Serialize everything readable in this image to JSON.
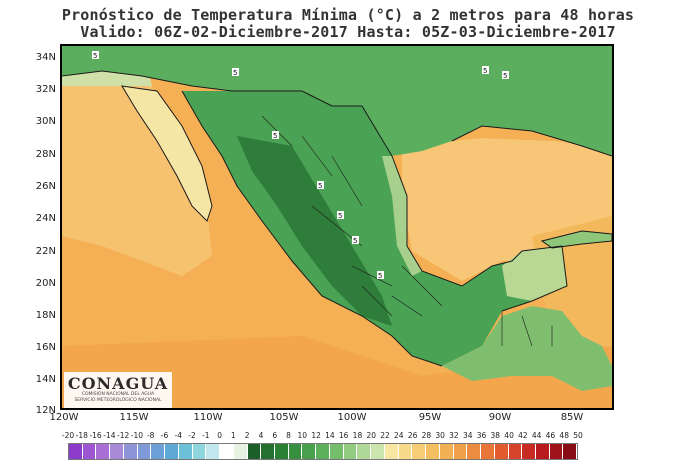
{
  "title": {
    "line1": "Pronóstico de Temperatura Mínima (°C) a 2 metros para 48 horas",
    "line2": "Valido: 06Z-02-Diciembre-2017  Hasta: 05Z-03-Diciembre-2017"
  },
  "map": {
    "lat_labels": [
      "34N",
      "32N",
      "30N",
      "28N",
      "26N",
      "24N",
      "22N",
      "20N",
      "18N",
      "16N",
      "14N",
      "12N"
    ],
    "lon_labels": [
      "120W",
      "115W",
      "110W",
      "105W",
      "100W",
      "95W",
      "90W",
      "85W"
    ],
    "point_value_label": "5",
    "colors": {
      "ocean_pacific": "#f5b055",
      "ocean_gulf": "#f7c777",
      "ocean_warm_south": "#f3a64c",
      "land_green": "#4aa255",
      "highland_green": "#2e7d3a",
      "baja_yellow": "#f6e6a6",
      "coast_light_green": "#a7d08c",
      "usa_green": "#5cae5f"
    }
  },
  "logo": {
    "name": "CONAGUA",
    "sub1": "COMISIÓN NACIONAL DEL AGUA",
    "sub2": "SERVICIO METEOROLÓGICO NACIONAL"
  },
  "legend": {
    "ticks": [
      "-20",
      "-18",
      "-16",
      "-14",
      "-12",
      "-10",
      "-8",
      "-6",
      "-4",
      "-2",
      "-1",
      "0",
      "1",
      "2",
      "4",
      "6",
      "8",
      "10",
      "12",
      "14",
      "16",
      "18",
      "20",
      "22",
      "24",
      "26",
      "28",
      "30",
      "32",
      "34",
      "36",
      "38",
      "40",
      "42",
      "44",
      "46",
      "48",
      "50"
    ],
    "colors": [
      "#8c3cc8",
      "#9e55d2",
      "#a96fd6",
      "#a78bd8",
      "#8f93d8",
      "#7e9bd8",
      "#6ba0d6",
      "#5ea8d6",
      "#6cc0d8",
      "#8fd5de",
      "#c2e7ee",
      "#ffffff",
      "#e7f3e2",
      "#1b5e2a",
      "#23702f",
      "#2b8035",
      "#379040",
      "#48a04c",
      "#5cb05b",
      "#76bd6b",
      "#93cb80",
      "#b0d898",
      "#cce4ad",
      "#f8e7a2",
      "#f7d98a",
      "#f6cc75",
      "#f4be62",
      "#f2b055",
      "#f0a04a",
      "#ec8c40",
      "#e87638",
      "#e25c30",
      "#d6422a",
      "#c82a24",
      "#b81a1e",
      "#a0121a",
      "#880c16"
    ]
  }
}
